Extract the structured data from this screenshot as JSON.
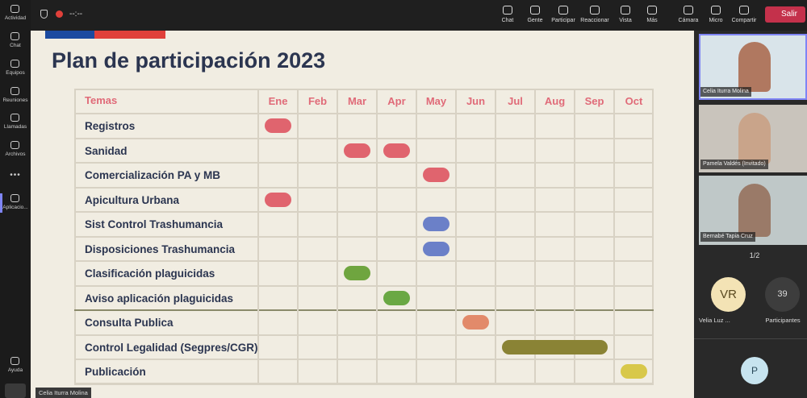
{
  "sidebar": [
    "Actividad",
    "Chat",
    "Equipos",
    "Reuniones",
    "Llamadas",
    "Archivos",
    "Aplicacio...",
    "Ayuda"
  ],
  "topbar": {
    "timer": "--:--",
    "buttons": [
      "Chat",
      "Gente",
      "Participar",
      "Reaccionar",
      "Vista",
      "Más",
      "Cámara",
      "Micro",
      "Compartir"
    ],
    "leave": "Salir"
  },
  "slide": {
    "title": "Plan de participación 2023",
    "header": "Temas",
    "months": [
      "Ene",
      "Feb",
      "Mar",
      "Apr",
      "May",
      "Jun",
      "Jul",
      "Aug",
      "Sep",
      "Oct"
    ],
    "rows": [
      {
        "label": "Registros",
        "bars": [
          {
            "start": "Ene",
            "end": "Ene",
            "color": "#e0646e"
          }
        ]
      },
      {
        "label": "Sanidad",
        "bars": [
          {
            "start": "Mar",
            "end": "Mar",
            "color": "#e0646e"
          },
          {
            "start": "Apr",
            "end": "Apr",
            "color": "#e0646e"
          }
        ]
      },
      {
        "label": "Comercialización PA y MB",
        "bars": [
          {
            "start": "May",
            "end": "May",
            "color": "#e0646e"
          }
        ]
      },
      {
        "label": "Apicultura Urbana",
        "bars": [
          {
            "start": "Ene",
            "end": "Ene",
            "color": "#e0646e"
          }
        ]
      },
      {
        "label": "Sist Control Trashumancia",
        "bars": [
          {
            "start": "May",
            "end": "May",
            "color": "#6b80c8"
          }
        ]
      },
      {
        "label": "Disposiciones Trashumancia",
        "bars": [
          {
            "start": "May",
            "end": "May",
            "color": "#6b80c8"
          }
        ]
      },
      {
        "label": "Clasificación plaguicidas",
        "bars": [
          {
            "start": "Mar",
            "end": "Mar",
            "color": "#6fa53f"
          }
        ]
      },
      {
        "label": "Aviso aplicación plaguicidas",
        "bars": [
          {
            "start": "Apr",
            "end": "Apr",
            "color": "#6aa844"
          }
        ]
      },
      {
        "label": "Consulta Publica",
        "bars": [
          {
            "start": "Jun",
            "end": "Jun",
            "color": "#e28a6a"
          }
        ]
      },
      {
        "label": "Control Legalidad (Segpres/CGR)",
        "bars": [
          {
            "start": "Jul",
            "end": "Sep",
            "color": "#8a8335"
          }
        ]
      },
      {
        "label": "Publicación",
        "bars": [
          {
            "start": "Oct",
            "end": "Oct",
            "color": "#d8c84a"
          }
        ]
      }
    ]
  },
  "presenter": "Celia Iturra Molina",
  "panel": {
    "videos": [
      "Celia Iturra Molina",
      "Pamela Valdés (Invitado)",
      "Bernabé Tapia Cruz"
    ],
    "pager": "1/2",
    "avatar": {
      "initials": "VR",
      "name": "Velia Luz ..."
    },
    "participants": {
      "count": 39,
      "label": "Participantes"
    },
    "bottom_avatar": "P"
  }
}
